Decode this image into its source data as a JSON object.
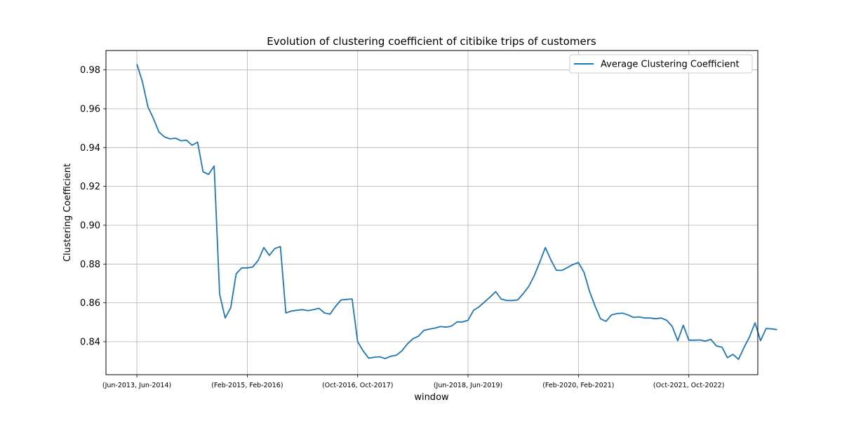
{
  "chart_data": {
    "type": "line",
    "title": "Evolution of clustering coefficient of citibike trips of customers",
    "xlabel": "window",
    "ylabel": "Clustering Coefficient",
    "ylim": [
      0.823,
      0.99
    ],
    "xlim": [
      -5.6,
      112.5
    ],
    "yticks": [
      0.84,
      0.86,
      0.88,
      0.9,
      0.92,
      0.94,
      0.96,
      0.98
    ],
    "ytick_labels": [
      "0.84",
      "0.86",
      "0.88",
      "0.90",
      "0.92",
      "0.94",
      "0.96",
      "0.98"
    ],
    "xticks": [
      0,
      20,
      40,
      60,
      80,
      100,
      120
    ],
    "xtick_labels": [
      "(Jun-2013, Jun-2014)",
      "(Feb-2015, Feb-2016)",
      "(Oct-2016, Oct-2017)",
      "(Jun-2018, Jun-2019)",
      "(Feb-2020, Feb-2021)",
      "(Oct-2021, Oct-2022)",
      ""
    ],
    "grid": true,
    "legend_position": "top-right",
    "series": [
      {
        "name": "Average Clustering Coefficient",
        "color": "#1f77b4",
        "x": [
          0,
          1,
          2,
          3,
          4,
          5,
          6,
          7,
          8,
          9,
          10,
          11,
          12,
          13,
          14,
          15,
          16,
          17,
          18,
          19,
          20,
          21,
          22,
          23,
          24,
          25,
          26,
          27,
          28,
          29,
          30,
          31,
          32,
          33,
          34,
          35,
          36,
          37,
          38,
          39,
          40,
          41,
          42,
          43,
          44,
          45,
          46,
          47,
          48,
          49,
          50,
          51,
          52,
          53,
          54,
          55,
          56,
          57,
          58,
          59,
          60,
          61,
          62,
          63,
          64,
          65,
          66,
          67,
          68,
          69,
          70,
          71,
          72,
          73,
          74,
          75,
          76,
          77,
          78,
          79,
          80,
          81,
          82,
          83,
          84,
          85,
          86,
          87,
          88,
          89,
          90,
          91,
          92,
          93,
          94,
          95,
          96,
          97,
          98,
          99,
          100,
          101,
          102,
          103,
          104,
          105,
          106,
          107,
          108,
          109,
          110,
          111,
          112,
          113,
          114,
          115,
          116
        ],
        "y": [
          0.983,
          0.974,
          0.961,
          0.955,
          0.948,
          0.9455,
          0.9445,
          0.9448,
          0.9435,
          0.9438,
          0.9412,
          0.9428,
          0.9275,
          0.9262,
          0.9305,
          0.8645,
          0.8522,
          0.8575,
          0.875,
          0.878,
          0.878,
          0.8785,
          0.882,
          0.8885,
          0.8845,
          0.888,
          0.889,
          0.8548,
          0.8558,
          0.8562,
          0.8565,
          0.856,
          0.8565,
          0.8572,
          0.8548,
          0.8542,
          0.8582,
          0.8615,
          0.8618,
          0.862,
          0.84,
          0.8352,
          0.8315,
          0.832,
          0.8322,
          0.8313,
          0.8325,
          0.833,
          0.8352,
          0.8388,
          0.8415,
          0.8428,
          0.8458,
          0.8465,
          0.847,
          0.8478,
          0.8475,
          0.848,
          0.8502,
          0.8502,
          0.851,
          0.8562,
          0.858,
          0.8605,
          0.863,
          0.8658,
          0.862,
          0.8612,
          0.8612,
          0.8615,
          0.8648,
          0.8685,
          0.874,
          0.881,
          0.8885,
          0.8822,
          0.8768,
          0.8767,
          0.8782,
          0.8797,
          0.8808,
          0.8758,
          0.866,
          0.8585,
          0.8518,
          0.8505,
          0.8538,
          0.8545,
          0.8547,
          0.8538,
          0.8525,
          0.8528,
          0.8522,
          0.8522,
          0.8518,
          0.8522,
          0.851,
          0.8478,
          0.8405,
          0.8485,
          0.8408,
          0.8408,
          0.8409,
          0.8403,
          0.8412,
          0.8378,
          0.8372,
          0.8318,
          0.8335,
          0.8309,
          0.837,
          0.8425,
          0.8497,
          0.8405,
          0.8468,
          0.8466,
          0.8462
        ]
      }
    ]
  }
}
